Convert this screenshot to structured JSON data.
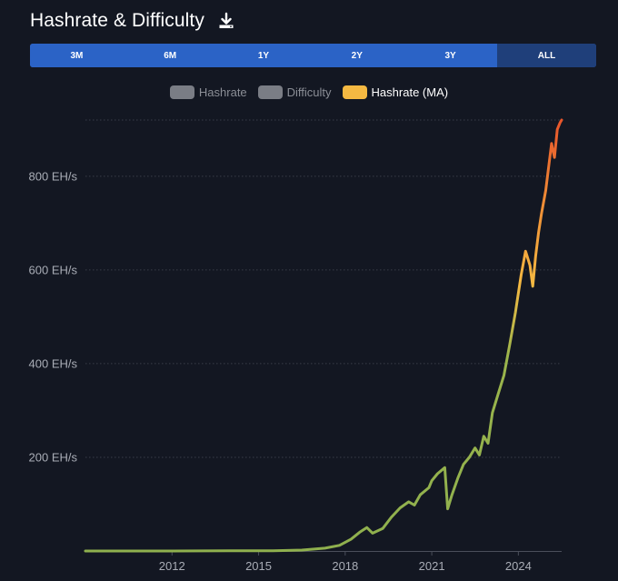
{
  "header": {
    "title": "Hashrate & Difficulty",
    "download_icon": "download-icon"
  },
  "range_selector": {
    "options": [
      "3M",
      "6M",
      "1Y",
      "2Y",
      "3Y",
      "ALL"
    ],
    "selected": "ALL"
  },
  "legend": [
    {
      "label": "Hashrate",
      "color": "#7a7d85",
      "active": false
    },
    {
      "label": "Difficulty",
      "color": "#7a7d85",
      "active": false
    },
    {
      "label": "Hashrate (MA)",
      "color": "#f5b942",
      "active": true
    }
  ],
  "colors": {
    "background": "#131722",
    "range_bar": "#2b63c6",
    "range_selected": "#1f3f7a",
    "gradient_low": "#8fb04e",
    "gradient_mid": "#f5b942",
    "gradient_high": "#e8552b"
  },
  "chart_data": {
    "type": "line",
    "title": "",
    "xlabel": "",
    "ylabel": "",
    "x_ticks": [
      "2012",
      "2015",
      "2018",
      "2021",
      "2024"
    ],
    "y_ticks": [
      "200 EH/s",
      "400 EH/s",
      "600 EH/s",
      "800 EH/s"
    ],
    "y_unit": "EH/s",
    "ylim": [
      0,
      920
    ],
    "xlim": [
      2009.0,
      2025.5
    ],
    "grid": "horizontal dotted",
    "series": [
      {
        "name": "Hashrate (MA)",
        "x": [
          2009.0,
          2012.0,
          2014.0,
          2015.5,
          2016.5,
          2017.3,
          2017.8,
          2018.2,
          2018.5,
          2018.75,
          2018.95,
          2019.3,
          2019.6,
          2019.9,
          2020.2,
          2020.4,
          2020.6,
          2020.9,
          2021.0,
          2021.2,
          2021.45,
          2021.55,
          2021.7,
          2021.9,
          2022.1,
          2022.3,
          2022.5,
          2022.65,
          2022.8,
          2022.95,
          2023.1,
          2023.3,
          2023.5,
          2023.7,
          2023.9,
          2024.1,
          2024.25,
          2024.4,
          2024.5,
          2024.6,
          2024.7,
          2024.8,
          2024.95,
          2025.05,
          2025.15,
          2025.25,
          2025.35,
          2025.45,
          2025.5
        ],
        "y": [
          0,
          0,
          0.3,
          0.6,
          2,
          6,
          12,
          25,
          40,
          50,
          38,
          48,
          72,
          92,
          105,
          98,
          120,
          135,
          150,
          165,
          178,
          90,
          120,
          155,
          185,
          200,
          220,
          205,
          245,
          230,
          295,
          335,
          375,
          440,
          510,
          590,
          640,
          610,
          565,
          630,
          680,
          720,
          770,
          820,
          870,
          840,
          900,
          915,
          920
        ]
      }
    ]
  }
}
